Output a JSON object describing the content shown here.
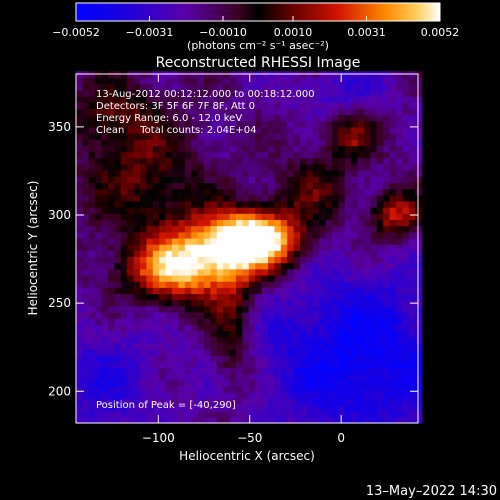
{
  "chart_data": {
    "type": "heatmap",
    "title": "Reconstructed RHESSI Image",
    "xlabel": "Heliocentric X (arcsec)",
    "ylabel": "Heliocentric Y (arcsec)",
    "xlim": [
      -145,
      42
    ],
    "ylim": [
      182,
      380
    ],
    "x_ticks": [
      -100,
      -50,
      0
    ],
    "x_tick_labels": [
      "−100",
      "−50",
      "0"
    ],
    "y_ticks": [
      200,
      250,
      300,
      350
    ],
    "y_tick_labels": [
      "200",
      "250",
      "300",
      "350"
    ],
    "grid": false,
    "annotations": [
      "13-Aug-2012 00:12:12.000 to 00:18:12.000",
      "Detectors: 3F 5F 6F 7F 8F, Att 0",
      "Energy Range: 6.0 - 12.0 keV",
      "Clean     Total counts: 2.04E+04"
    ],
    "peak_label": "Position of Peak = [-40,290]",
    "peak": [
      -40,
      290
    ],
    "colorbar": {
      "min": -0.0052,
      "max": 0.0052,
      "ticks": [
        -0.0052,
        -0.0031,
        -0.001,
        0.001,
        0.0031,
        0.0052
      ],
      "tick_labels": [
        "−0.0052",
        "−0.0031",
        "−0.0010",
        "0.0010",
        "0.0031",
        "0.0052"
      ],
      "unit_label": "(photons cm⁻² s⁻¹ asec⁻²)"
    },
    "sources": [
      {
        "x": -45,
        "y": 287,
        "sx": 16,
        "sy": 11,
        "amp": 1.0
      },
      {
        "x": -70,
        "y": 278,
        "sx": 22,
        "sy": 16,
        "amp": 0.75
      },
      {
        "x": -95,
        "y": 268,
        "sx": 18,
        "sy": 12,
        "amp": 0.55
      },
      {
        "x": -110,
        "y": 325,
        "sx": 22,
        "sy": 25,
        "amp": 0.35
      },
      {
        "x": -60,
        "y": 235,
        "sx": 8,
        "sy": 22,
        "amp": 0.35
      },
      {
        "x": 5,
        "y": 345,
        "sx": 9,
        "sy": 9,
        "amp": 0.4
      },
      {
        "x": 30,
        "y": 300,
        "sx": 10,
        "sy": 9,
        "amp": 0.55
      },
      {
        "x": -15,
        "y": 315,
        "sx": 14,
        "sy": 14,
        "amp": 0.3
      },
      {
        "x": -125,
        "y": 360,
        "sx": 14,
        "sy": 12,
        "amp": 0.28
      }
    ],
    "negative_regions": [
      {
        "x": 10,
        "y": 220,
        "sx": 40,
        "sy": 35,
        "amp": -0.45
      },
      {
        "x": -130,
        "y": 205,
        "sx": 25,
        "sy": 25,
        "amp": -0.25
      },
      {
        "x": 0,
        "y": 372,
        "sx": 20,
        "sy": 10,
        "amp": -0.2
      }
    ]
  },
  "footer_timestamp": "13–May–2022 14:30"
}
